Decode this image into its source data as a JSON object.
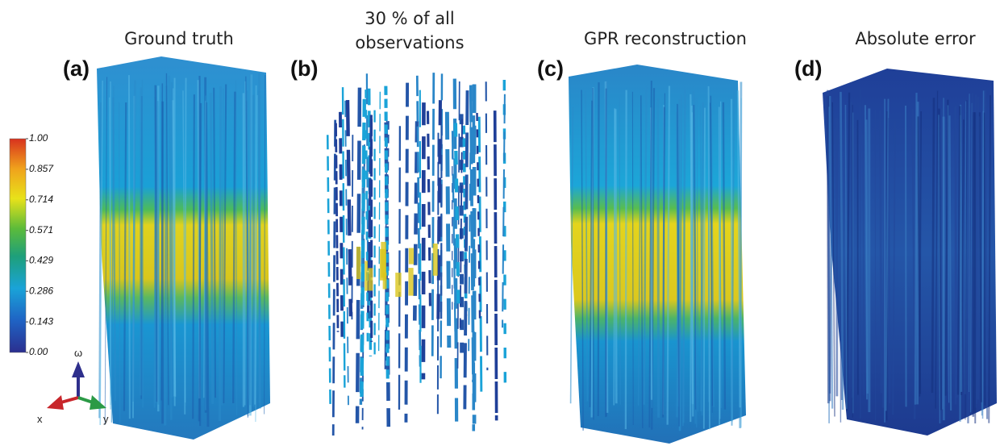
{
  "panels": [
    {
      "label": "(a)",
      "title": [
        "Ground truth"
      ]
    },
    {
      "label": "(b)",
      "title": [
        "30 % of all",
        "observations"
      ]
    },
    {
      "label": "(c)",
      "title": [
        "GPR reconstruction"
      ]
    },
    {
      "label": "(d)",
      "title": [
        "Absolute error"
      ]
    }
  ],
  "colorbar": {
    "ticks": [
      {
        "value": 1,
        "label": "1.00"
      },
      {
        "value": 0.857,
        "label": "0.857"
      },
      {
        "value": 0.714,
        "label": "0.714"
      },
      {
        "value": 0.571,
        "label": "0.571"
      },
      {
        "value": 0.429,
        "label": "0.429"
      },
      {
        "value": 0.286,
        "label": "0.286"
      },
      {
        "value": 0.143,
        "label": "0.143"
      },
      {
        "value": 0,
        "label": "0.00"
      }
    ]
  },
  "axes": {
    "w": "ω",
    "x": "x",
    "y": "y"
  }
}
